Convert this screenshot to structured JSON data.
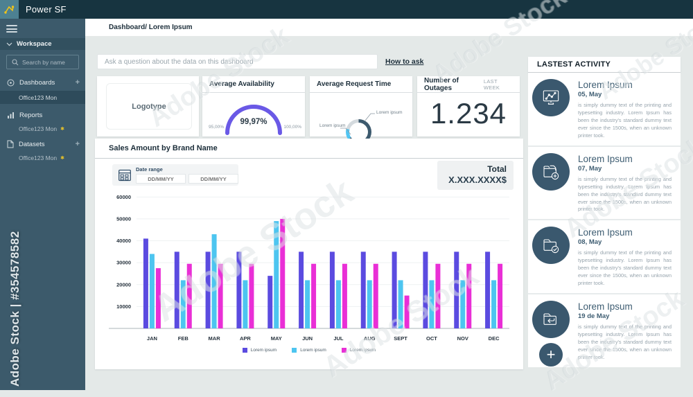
{
  "app": {
    "title": "Power SF"
  },
  "breadcrumb": "Dashboard/ Lorem Ipsum",
  "ask_bar": {
    "placeholder": "Ask a question about the data on this dashboard",
    "help_link": "How to ask"
  },
  "sidebar": {
    "workspace_label": "Workspace",
    "search_placeholder": "Search by name",
    "add_label": "+",
    "star_glyph": "✱",
    "sections": [
      {
        "label": "Dashboards",
        "item": "Office123 Mon"
      },
      {
        "label": "Reports",
        "item": "Office123 Mon"
      },
      {
        "label": "Datasets",
        "item": "Office123 Mon"
      }
    ]
  },
  "cards": {
    "logotype": {
      "label": "Logotype"
    },
    "availability": {
      "title": "Average Availability",
      "value": "99,97%",
      "min": "95,00%",
      "max": "100,00%",
      "accent": "#6a59e6"
    },
    "request_time": {
      "title": "Average Request Time",
      "label_right": "Lorem ipsum",
      "label_left": "Lorem ipsum",
      "segments": [
        {
          "color": "#3d5a6e",
          "deg": 235
        },
        {
          "color": "#52c5f2",
          "deg": 50
        },
        {
          "color": "#d4dade",
          "deg": 75
        }
      ]
    },
    "outages": {
      "title": "Number of Outages",
      "period": "LAST WEEK",
      "value": "1.234"
    }
  },
  "sales": {
    "title": "Sales Amount by Brand Name",
    "date_range_label": "Date range",
    "date_from": "DD/MM/YY",
    "date_to": "DD/MM/YY",
    "total_label": "Total",
    "total_value": "X.XXX.XXXX$"
  },
  "chart_data": {
    "type": "bar",
    "title": "Sales Amount by Brand Name",
    "categories": [
      "JAN",
      "FEB",
      "MAR",
      "APR",
      "MAY",
      "JUN",
      "JUL",
      "AUG",
      "SEPT",
      "OCT",
      "NOV",
      "DEC"
    ],
    "series": [
      {
        "name": "Lorem ipsum",
        "color": "#5b4be0",
        "values": [
          41000,
          35000,
          35000,
          35000,
          24000,
          35000,
          35000,
          35000,
          35000,
          35000,
          35000,
          35000
        ]
      },
      {
        "name": "Lorem ipsum",
        "color": "#4dc5f0",
        "values": [
          34000,
          22000,
          43000,
          22000,
          49000,
          22000,
          22000,
          22000,
          22000,
          22000,
          22000,
          22000
        ]
      },
      {
        "name": "Lorem ipsum",
        "color": "#e92fd6",
        "values": [
          27500,
          29500,
          29500,
          29500,
          50000,
          29500,
          29500,
          29500,
          15000,
          29500,
          29500,
          29500
        ]
      }
    ],
    "xlabel": "",
    "ylabel": "",
    "ylim": [
      0,
      60000
    ],
    "yticks": [
      10000,
      20000,
      30000,
      40000,
      50000,
      60000
    ],
    "grid": true,
    "legend_position": "bottom"
  },
  "activity": {
    "title": "LASTEST ACTIVITY",
    "add_label": "+",
    "items": [
      {
        "title": "Lorem Ipsum",
        "date": "05, May",
        "icon": "monitor-chart-icon",
        "body": "is simply dummy text of the printing and typesetting industry. Lorem Ipsum has been the industry's standard dummy text ever since the 1500s, when an unknown printer took."
      },
      {
        "title": "Lorem Ipsum",
        "date": "07, May",
        "icon": "folder-add-icon",
        "body": "is simply dummy text of the printing and typesetting industry. Lorem Ipsum has been the industry's standard dummy text ever since the 1500s, when an unknown printer took."
      },
      {
        "title": "Lorem Ipsum",
        "date": "08, May",
        "icon": "folder-check-icon",
        "body": "is simply dummy text of the printing and typesetting industry. Lorem Ipsum has been the industry's standard dummy text ever since the 1500s, when an unknown printer took."
      },
      {
        "title": "Lorem Ipsum",
        "date": "19 de May",
        "icon": "folder-return-icon",
        "body": "is simply dummy text of the printing and typesetting industry. Lorem Ipsum has been the industry's standard dummy text ever since the 1500s, when an unknown printer took."
      }
    ]
  },
  "watermark": {
    "text": "Adobe Stock",
    "id_text": "Adobe Stock | #354578582"
  }
}
